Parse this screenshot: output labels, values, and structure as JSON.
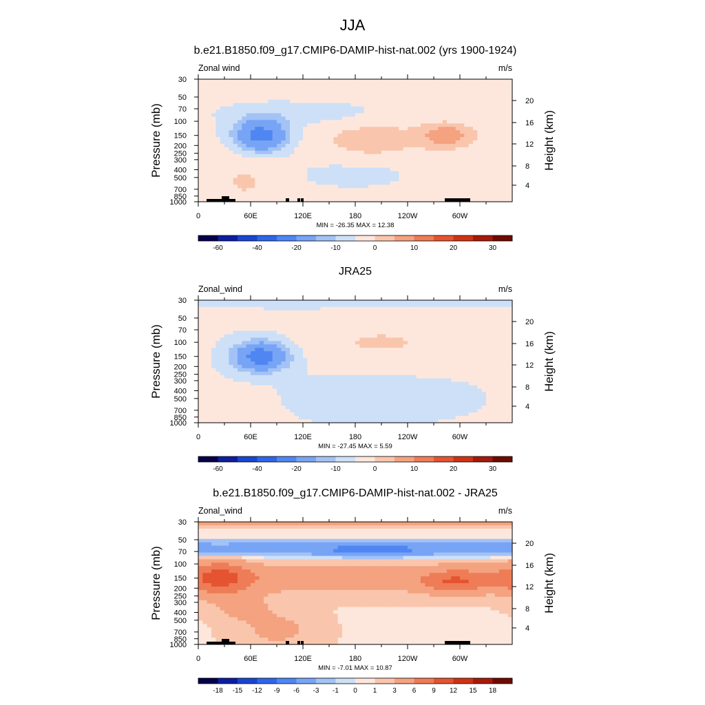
{
  "figure": {
    "title": "JJA"
  },
  "chart_data": [
    {
      "type": "heatmap",
      "title": "b.e21.B1850.f09_g17.CMIP6-DAMIP-hist-nat.002 (yrs 1900-1924)",
      "left_label": "Zonal wind",
      "right_label": "m/s",
      "xlabel": "",
      "ylabel": "Pressure (mb)",
      "y2label": "Height (km)",
      "x_ticks": [
        "0",
        "60E",
        "120E",
        "180",
        "120W",
        "60W"
      ],
      "y_ticks": [
        "30",
        "50",
        "70",
        "100",
        "150",
        "200",
        "250",
        "300",
        "400",
        "500",
        "700",
        "850",
        "1000"
      ],
      "y2_ticks": [
        "20",
        "16",
        "12",
        "8",
        "4"
      ],
      "stats": "MIN = -26.35  MAX =  12.38",
      "min": -26.35,
      "max": 12.38,
      "colorbar_labels": [
        "-60",
        "-40",
        "-20",
        "-10",
        "0",
        "10",
        "20",
        "30"
      ],
      "colorbar_colors": [
        "#05004a",
        "#0c1f9e",
        "#1a45d1",
        "#2f66e8",
        "#4f86f2",
        "#77a4f5",
        "#a3c2f5",
        "#cde0f7",
        "#fde7dc",
        "#f9c6ad",
        "#f4a27f",
        "#ee7c56",
        "#e45430",
        "#cf3214",
        "#a51a0b",
        "#6e0b00"
      ],
      "features": [
        {
          "kind": "jet",
          "lon": 72,
          "p": 150,
          "value": -26,
          "dlon": 30,
          "dlogp": 0.2
        },
        {
          "kind": "jet",
          "lon": 200,
          "p": 170,
          "value": 6,
          "dlon": 60,
          "dlogp": 0.25
        },
        {
          "kind": "jet",
          "lon": 285,
          "p": 150,
          "value": 12,
          "dlon": 30,
          "dlogp": 0.15
        },
        {
          "kind": "jet",
          "lon": 55,
          "p": 550,
          "value": 4,
          "dlon": 40,
          "dlogp": 0.35
        },
        {
          "kind": "jet",
          "lon": 180,
          "p": 450,
          "value": -3,
          "dlon": 80,
          "dlogp": 0.2
        },
        {
          "kind": "jet",
          "lon": 120,
          "p": 80,
          "value": -4,
          "dlon": 100,
          "dlogp": 0.15
        },
        {
          "kind": "jet",
          "lon": 300,
          "p": 600,
          "value": 2,
          "dlon": 50,
          "dlogp": 0.3
        }
      ],
      "base_value": 1.5,
      "terrain": true
    },
    {
      "type": "heatmap",
      "title": "JRA25",
      "left_label": "Zonal_wind",
      "right_label": "m/s",
      "xlabel": "",
      "ylabel": "Pressure (mb)",
      "y2label": "Height (km)",
      "x_ticks": [
        "0",
        "60E",
        "120E",
        "180",
        "120W",
        "60W"
      ],
      "y_ticks": [
        "30",
        "50",
        "70",
        "100",
        "150",
        "200",
        "250",
        "300",
        "400",
        "500",
        "700",
        "850",
        "1000"
      ],
      "y2_ticks": [
        "20",
        "16",
        "12",
        "8",
        "4"
      ],
      "stats": "MIN = -27.45  MAX =   5.59",
      "min": -27.45,
      "max": 5.59,
      "colorbar_labels": [
        "-60",
        "-40",
        "-20",
        "-10",
        "0",
        "10",
        "20",
        "30"
      ],
      "colorbar_colors": [
        "#05004a",
        "#0c1f9e",
        "#1a45d1",
        "#2f66e8",
        "#4f86f2",
        "#77a4f5",
        "#a3c2f5",
        "#cde0f7",
        "#fde7dc",
        "#f9c6ad",
        "#f4a27f",
        "#ee7c56",
        "#e45430",
        "#cf3214",
        "#a51a0b",
        "#6e0b00"
      ],
      "features": [
        {
          "kind": "jet",
          "lon": 72,
          "p": 150,
          "value": -27,
          "dlon": 30,
          "dlogp": 0.18
        },
        {
          "kind": "jet",
          "lon": 210,
          "p": 100,
          "value": 5,
          "dlon": 90,
          "dlogp": 0.25
        },
        {
          "kind": "jet",
          "lon": 200,
          "p": 500,
          "value": -3,
          "dlon": 100,
          "dlogp": 0.25
        },
        {
          "kind": "jet",
          "lon": 50,
          "p": 650,
          "value": 2,
          "dlon": 40,
          "dlogp": 0.25
        },
        {
          "kind": "jet",
          "lon": 180,
          "p": 30,
          "value": -4,
          "dlon": 200,
          "dlogp": 0.08
        }
      ],
      "base_value": 0.5,
      "terrain": false
    },
    {
      "type": "heatmap",
      "title": "b.e21.B1850.f09_g17.CMIP6-DAMIP-hist-nat.002 - JRA25",
      "left_label": "Zonal_wind",
      "right_label": "m/s",
      "xlabel": "",
      "ylabel": "Pressure (mb)",
      "y2label": "Height (km)",
      "x_ticks": [
        "0",
        "60E",
        "120E",
        "180",
        "120W",
        "60W"
      ],
      "y_ticks": [
        "30",
        "50",
        "70",
        "100",
        "150",
        "200",
        "250",
        "300",
        "400",
        "500",
        "700",
        "850",
        "1000"
      ],
      "y2_ticks": [
        "20",
        "16",
        "12",
        "8",
        "4"
      ],
      "stats": "MIN =  -7.01  MAX =  10.87",
      "min": -7.01,
      "max": 10.87,
      "colorbar_labels": [
        "-18",
        "-15",
        "-12",
        "-9",
        "-6",
        "-3",
        "-1",
        "0",
        "1",
        "3",
        "6",
        "9",
        "12",
        "15",
        "18"
      ],
      "colorbar_colors": [
        "#05004a",
        "#0c1f9e",
        "#1a45d1",
        "#2f66e8",
        "#4f86f2",
        "#77a4f5",
        "#a3c2f5",
        "#cde0f7",
        "#fde7dc",
        "#f9c6ad",
        "#f4a27f",
        "#ee7c56",
        "#e45430",
        "#cf3214",
        "#a51a0b",
        "#6e0b00"
      ],
      "features": [
        {
          "kind": "band",
          "p": 65,
          "value": -6,
          "dlogp": 0.1
        },
        {
          "kind": "band",
          "p": 150,
          "value": 4,
          "dlogp": 0.2
        },
        {
          "kind": "band",
          "p": 30,
          "value": 3,
          "dlogp": 0.05
        },
        {
          "kind": "jet",
          "lon": 25,
          "p": 150,
          "value": 6,
          "dlon": 35,
          "dlogp": 0.25
        },
        {
          "kind": "jet",
          "lon": 200,
          "p": 70,
          "value": -3,
          "dlon": 50,
          "dlogp": 0.08
        },
        {
          "kind": "jet",
          "lon": 295,
          "p": 170,
          "value": 5,
          "dlon": 35,
          "dlogp": 0.15
        },
        {
          "kind": "jet",
          "lon": 90,
          "p": 650,
          "value": 3,
          "dlon": 45,
          "dlogp": 0.25
        },
        {
          "kind": "jet",
          "lon": 50,
          "p": 350,
          "value": 3,
          "dlon": 30,
          "dlogp": 0.15
        }
      ],
      "base_value": 0.8,
      "terrain": true
    }
  ]
}
